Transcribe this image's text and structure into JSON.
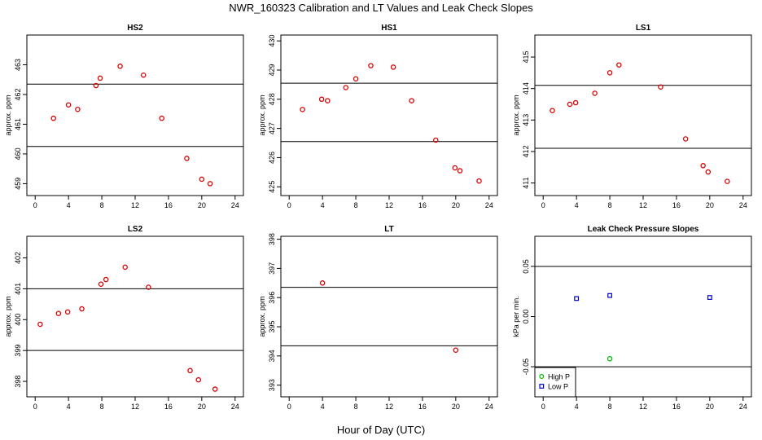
{
  "figure": {
    "title": "NWR_160323  Calibration and LT Values and Leak Check Slopes",
    "xlabel": "Hour of Day (UTC)"
  },
  "chart_data": [
    {
      "type": "scatter",
      "title": "HS2",
      "ylabel": "approx. ppm",
      "xlim": [
        -1,
        25
      ],
      "ylim": [
        458.6,
        464.0
      ],
      "xticks": [
        0,
        4,
        8,
        12,
        16,
        20,
        24
      ],
      "yticks": [
        459,
        460,
        461,
        462,
        463
      ],
      "hlines": [
        462.35,
        460.25
      ],
      "series": [
        {
          "color": "#dd0000",
          "marker": "circle",
          "x": [
            2.2,
            4.0,
            5.1,
            7.3,
            7.8,
            10.2,
            13.0,
            15.2,
            18.2,
            20.0,
            21.0
          ],
          "y": [
            461.2,
            461.65,
            461.5,
            462.3,
            462.55,
            462.95,
            462.65,
            461.2,
            459.85,
            459.15,
            459.0
          ]
        }
      ]
    },
    {
      "type": "scatter",
      "title": "HS1",
      "ylabel": "approx. ppm",
      "xlim": [
        -1,
        25
      ],
      "ylim": [
        424.7,
        430.2
      ],
      "xticks": [
        0,
        4,
        8,
        12,
        16,
        20,
        24
      ],
      "yticks": [
        425,
        426,
        427,
        428,
        429,
        430
      ],
      "hlines": [
        428.55,
        426.55
      ],
      "series": [
        {
          "color": "#dd0000",
          "marker": "circle",
          "x": [
            1.6,
            3.9,
            4.6,
            6.8,
            8.0,
            9.8,
            12.5,
            14.7,
            17.6,
            19.9,
            20.5,
            22.8
          ],
          "y": [
            427.65,
            428.0,
            427.95,
            428.4,
            428.7,
            429.15,
            429.1,
            427.95,
            426.6,
            425.65,
            425.55,
            425.2
          ]
        }
      ]
    },
    {
      "type": "scatter",
      "title": "LS1",
      "ylabel": "approx. ppm",
      "xlim": [
        -1,
        25
      ],
      "ylim": [
        410.6,
        415.7
      ],
      "xticks": [
        0,
        4,
        8,
        12,
        16,
        20,
        24
      ],
      "yticks": [
        411,
        412,
        413,
        414,
        415
      ],
      "hlines": [
        414.1,
        412.1
      ],
      "series": [
        {
          "color": "#dd0000",
          "marker": "circle",
          "x": [
            1.1,
            3.2,
            3.9,
            6.2,
            8.0,
            9.1,
            14.1,
            17.1,
            19.2,
            19.8,
            22.1
          ],
          "y": [
            413.3,
            413.5,
            413.55,
            413.85,
            414.5,
            414.75,
            414.05,
            412.4,
            411.55,
            411.35,
            411.05
          ]
        }
      ]
    },
    {
      "type": "scatter",
      "title": "LS2",
      "ylabel": "approx. ppm",
      "xlim": [
        -1,
        25
      ],
      "ylim": [
        397.5,
        402.7
      ],
      "xticks": [
        0,
        4,
        8,
        12,
        16,
        20,
        24
      ],
      "yticks": [
        398,
        399,
        400,
        401,
        402
      ],
      "hlines": [
        401.0,
        399.0
      ],
      "series": [
        {
          "color": "#dd0000",
          "marker": "circle",
          "x": [
            0.6,
            2.8,
            3.9,
            5.6,
            7.9,
            8.5,
            10.8,
            13.6,
            18.6,
            19.6,
            21.6
          ],
          "y": [
            399.85,
            400.2,
            400.25,
            400.35,
            401.15,
            401.3,
            401.7,
            401.05,
            398.35,
            398.05,
            397.75
          ]
        }
      ]
    },
    {
      "type": "scatter",
      "title": "LT",
      "ylabel": "approx. ppm",
      "xlim": [
        -1,
        25
      ],
      "ylim": [
        392.6,
        398.1
      ],
      "xticks": [
        0,
        4,
        8,
        12,
        16,
        20,
        24
      ],
      "yticks": [
        393,
        394,
        395,
        396,
        397,
        398
      ],
      "hlines": [
        396.35,
        394.35
      ],
      "series": [
        {
          "color": "#dd0000",
          "marker": "circle",
          "x": [
            4.0,
            20.0
          ],
          "y": [
            396.5,
            394.2
          ]
        }
      ]
    },
    {
      "type": "scatter",
      "title": "Leak Check Pressure Slopes",
      "ylabel": "kPa per min.",
      "xlim": [
        -1,
        25
      ],
      "ylim": [
        -0.08,
        0.08
      ],
      "xticks": [
        0,
        4,
        8,
        12,
        16,
        20,
        24
      ],
      "yticks": [
        -0.05,
        0.0,
        0.05
      ],
      "ytick_labels": [
        "-0.05",
        "0.00",
        "0.05"
      ],
      "hlines": [
        0.05,
        -0.05
      ],
      "legend": {
        "placement": "bottom-left",
        "entries": [
          "High P",
          "Low P"
        ]
      },
      "series": [
        {
          "name": "High P",
          "color": "#00bb00",
          "marker": "circle",
          "x": [
            8.0
          ],
          "y": [
            -0.042
          ]
        },
        {
          "name": "Low P",
          "color": "#0000cc",
          "marker": "square",
          "x": [
            4.0,
            8.0,
            20.0
          ],
          "y": [
            0.018,
            0.021,
            0.019
          ]
        }
      ]
    }
  ]
}
